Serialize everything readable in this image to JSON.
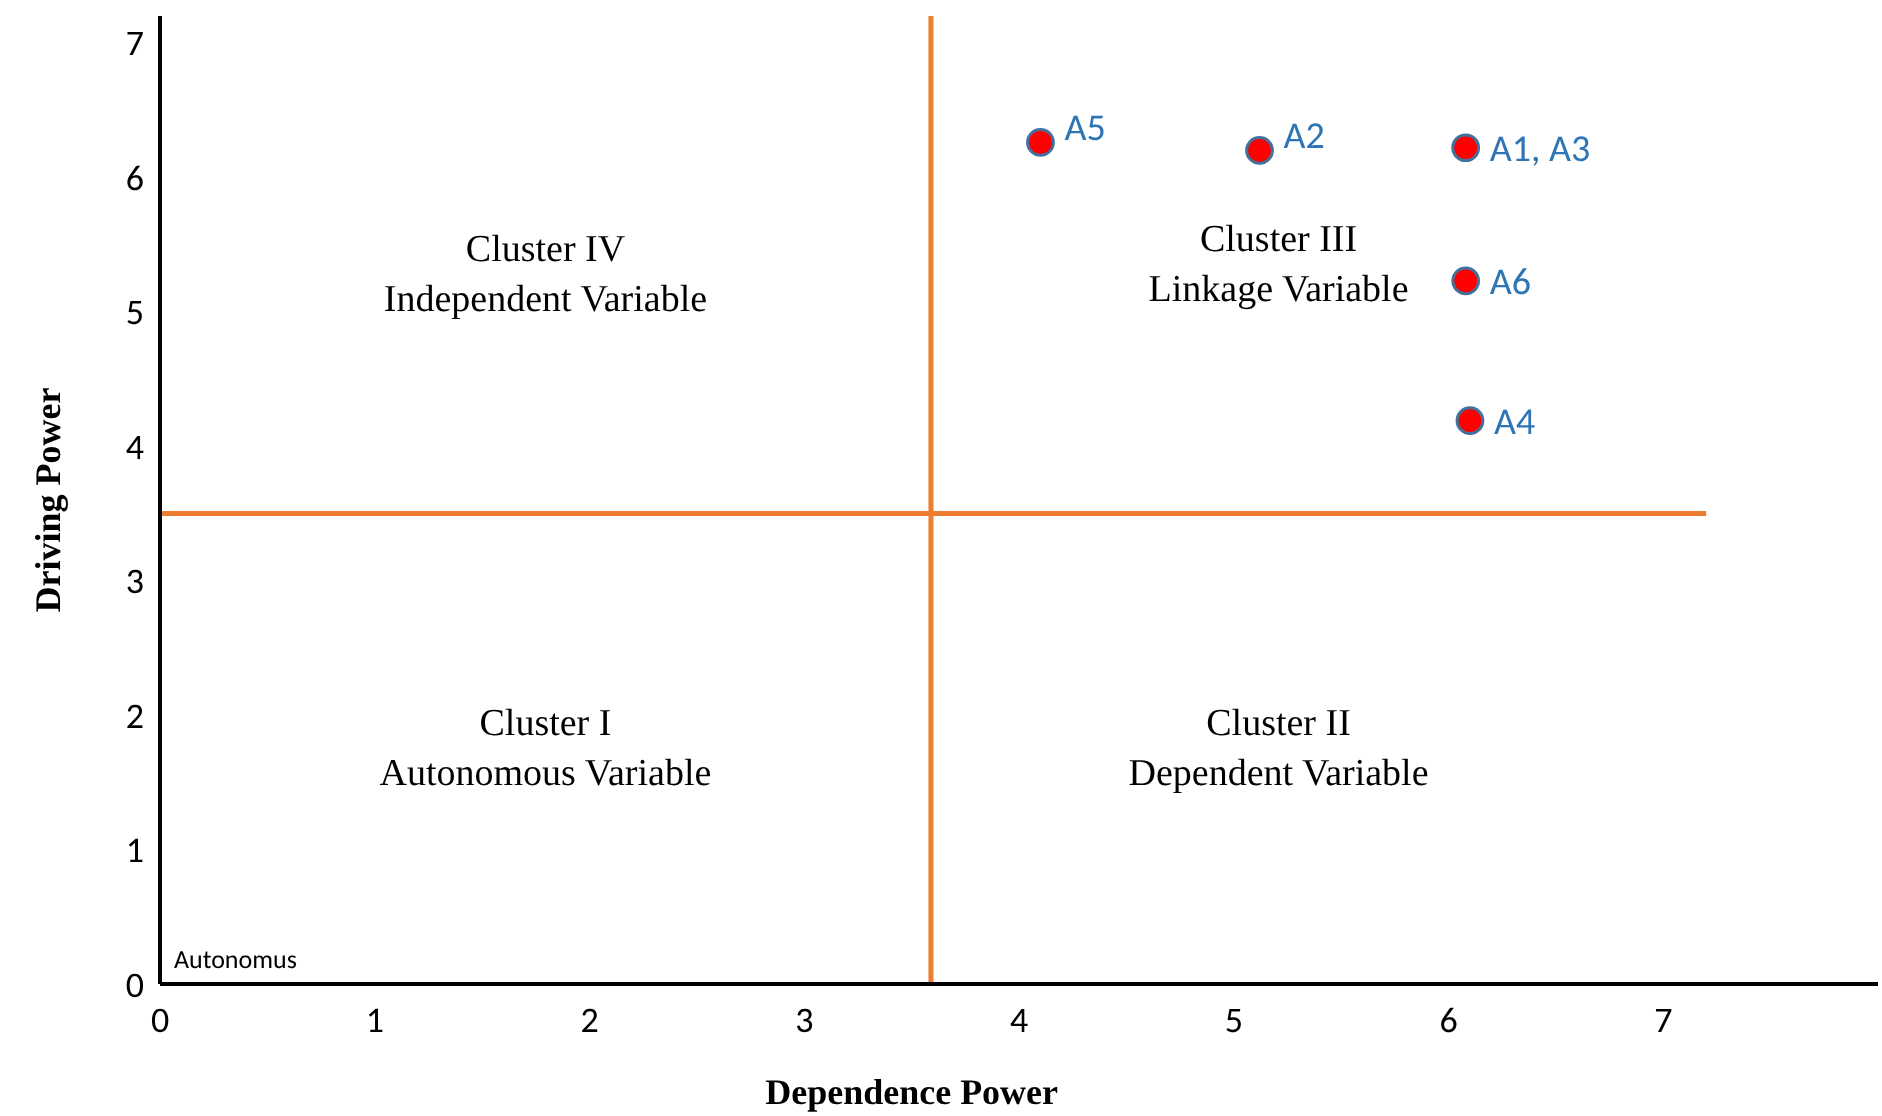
{
  "chart_data": {
    "type": "scatter",
    "xlabel": "Dependence Power",
    "ylabel": "Driving Power",
    "x": [
      4.1,
      5.12,
      6.08,
      6.08,
      6.1
    ],
    "series": [
      {
        "color": "#ff0000",
        "values": [
          6.26,
          6.2,
          6.22,
          5.23,
          4.19
        ]
      }
    ],
    "xlim": [
      0,
      8
    ],
    "xticks": [
      0,
      1,
      2,
      3,
      4,
      5,
      6,
      7
    ],
    "ylim": [
      0,
      7.2
    ],
    "yticks": [
      0,
      1,
      2,
      3,
      4,
      5,
      6,
      7
    ],
    "marker": "circle",
    "grid": false,
    "ref_lines": [
      {
        "axis": "x",
        "value": 3.59,
        "color": "#ed7d31"
      },
      {
        "axis": "y",
        "value": 3.5,
        "color": "#ed7d31"
      }
    ],
    "annotations": [
      "Cluster IV\nIndependent Variable",
      "Cluster III\nLinkage Variable",
      "Cluster I\nAutonomous Variable",
      "Cluster II\nDependent Variable",
      "Autonomus",
      {
        "text": "A5",
        "x": 4.1,
        "y": 6.26
      },
      {
        "text": "A2",
        "x": 5.12,
        "y": 6.2
      },
      {
        "text": "A1, A3",
        "x": 6.08,
        "y": 6.22
      },
      {
        "text": "A6",
        "x": 6.08,
        "y": 5.23
      },
      {
        "text": "A4",
        "x": 6.1,
        "y": 4.19
      }
    ]
  }
}
